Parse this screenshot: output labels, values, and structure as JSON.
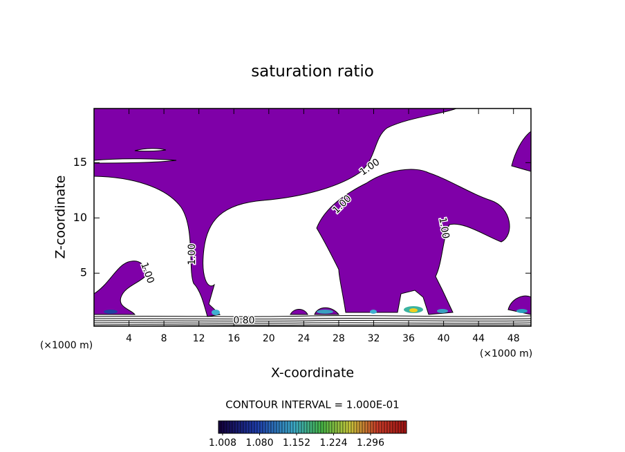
{
  "chart_data": {
    "type": "contour",
    "title": "saturation ratio",
    "x_label": "X-coordinate",
    "y_label": "Z-coordinate",
    "x_unit": "(×1000 m)",
    "y_unit": "(×1000 m)",
    "xlim": [
      0,
      50
    ],
    "xticks": [
      4,
      8,
      12,
      16,
      20,
      24,
      28,
      32,
      36,
      40,
      44,
      48
    ],
    "ylim": [
      0.2,
      19.9
    ],
    "yticks": [
      5,
      10,
      15
    ],
    "fill_level": 1.0,
    "fill_color": "#7f00a8",
    "contour_labels": [
      "1.00",
      "1.00",
      "1.00",
      "1.00",
      "1.00",
      "0.80"
    ],
    "annotation": "CONTOUR INTERVAL = 1.000E-01",
    "colorbar": {
      "clim": [
        1.0,
        1.366
      ],
      "ticks": [
        1.008,
        {
          "value": 1.08,
          "label": "1.080"
        },
        1.152,
        1.224,
        1.296
      ]
    }
  }
}
